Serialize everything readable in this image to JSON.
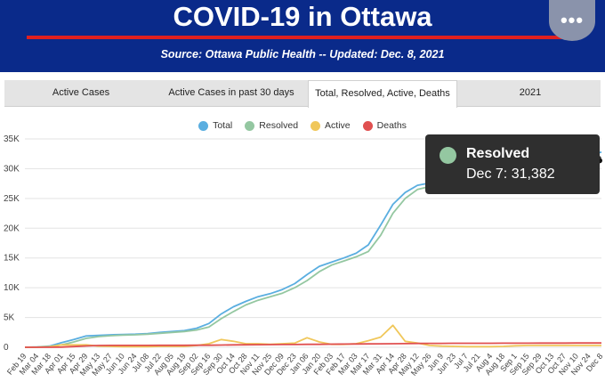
{
  "header": {
    "title": "COVID-19 in Ottawa",
    "subtitle": "Source:  Ottawa Public Health -- Updated:  Dec. 8, 2021",
    "more_label": "•••",
    "more_icon": "more-horizontal-icon",
    "bg_color": "#0a2a8a",
    "rule_color": "#e02020"
  },
  "tabs": [
    {
      "label": "Active Cases",
      "active": false
    },
    {
      "label": "Active Cases in past 30 days",
      "active": false
    },
    {
      "label": "Total, Resolved, Active, Deaths",
      "active": true
    },
    {
      "label": "2021",
      "active": false
    }
  ],
  "tooltip": {
    "series": "Resolved",
    "text": "Dec 7: 31,382"
  },
  "chart_data": {
    "type": "line",
    "ylim": [
      0,
      35000
    ],
    "y_ticks": [
      "0",
      "5K",
      "10K",
      "15K",
      "20K",
      "25K",
      "30K",
      "35K"
    ],
    "x_ticks": [
      "Feb 19",
      "Mar 04",
      "Mar 18",
      "Apr 01",
      "Apr 15",
      "Apr 29",
      "May 13",
      "May 27",
      "Jun 10",
      "Jun 24",
      "Jul 08",
      "Jul 22",
      "Aug 05",
      "Aug 19",
      "Sep 02",
      "Sep 16",
      "Sep 30",
      "Oct 14",
      "Oct 28",
      "Nov 11",
      "Nov 25",
      "Dec 09",
      "Dec 23",
      "Jan 06",
      "Jan 20",
      "Feb 03",
      "Feb 17",
      "Mar 03",
      "Mar 17",
      "Mar 31",
      "Apr 14",
      "Apr 28",
      "May 12",
      "May 26",
      "Jun 9",
      "Jun 23",
      "Jul 7",
      "Jul 21",
      "Aug 4",
      "Aug 18",
      "Sep 1",
      "Sep 15",
      "Sep 29",
      "Oct 13",
      "Oct 27",
      "Nov 10",
      "Nov 24",
      "Dec 8"
    ],
    "grid": true,
    "legend_position": "top-center",
    "series": [
      {
        "name": "Total",
        "color": "#5aaee0",
        "values": [
          0,
          50,
          200,
          800,
          1300,
          1900,
          2000,
          2100,
          2150,
          2200,
          2300,
          2500,
          2650,
          2800,
          3200,
          4000,
          5600,
          6800,
          7700,
          8500,
          9000,
          9700,
          10700,
          12200,
          13600,
          14300,
          15000,
          15800,
          17200,
          20500,
          24000,
          26000,
          27200,
          27600,
          27800,
          27950,
          28050,
          28150,
          28250,
          28400,
          28700,
          29200,
          29700,
          30300,
          31000,
          31600,
          32200,
          32800
        ]
      },
      {
        "name": "Resolved",
        "color": "#94c7a1",
        "values": [
          0,
          30,
          100,
          400,
          900,
          1500,
          1800,
          1950,
          2050,
          2100,
          2200,
          2350,
          2500,
          2650,
          2900,
          3400,
          4800,
          6000,
          7100,
          7900,
          8500,
          9100,
          10000,
          11200,
          12700,
          13800,
          14500,
          15200,
          16100,
          18800,
          22500,
          25000,
          26500,
          27000,
          27300,
          27600,
          27800,
          27900,
          28000,
          28150,
          28350,
          28800,
          29300,
          29800,
          30400,
          31000,
          31382,
          31800
        ]
      },
      {
        "name": "Active",
        "color": "#f0c75a",
        "values": [
          0,
          20,
          100,
          400,
          400,
          400,
          200,
          150,
          100,
          100,
          100,
          150,
          150,
          150,
          300,
          600,
          1300,
          1000,
          600,
          600,
          500,
          600,
          700,
          1600,
          900,
          500,
          500,
          600,
          1100,
          1700,
          3700,
          1000,
          700,
          300,
          200,
          150,
          100,
          100,
          100,
          150,
          250,
          300,
          300,
          300,
          300,
          300,
          300,
          300
        ]
      },
      {
        "name": "Deaths",
        "color": "#e05050",
        "values": [
          0,
          0,
          5,
          30,
          120,
          230,
          300,
          310,
          320,
          320,
          320,
          330,
          330,
          330,
          340,
          350,
          380,
          400,
          420,
          440,
          450,
          460,
          470,
          490,
          500,
          520,
          540,
          560,
          570,
          580,
          600,
          620,
          650,
          660,
          665,
          670,
          670,
          675,
          680,
          685,
          690,
          695,
          700,
          705,
          710,
          715,
          720,
          725
        ]
      }
    ]
  }
}
